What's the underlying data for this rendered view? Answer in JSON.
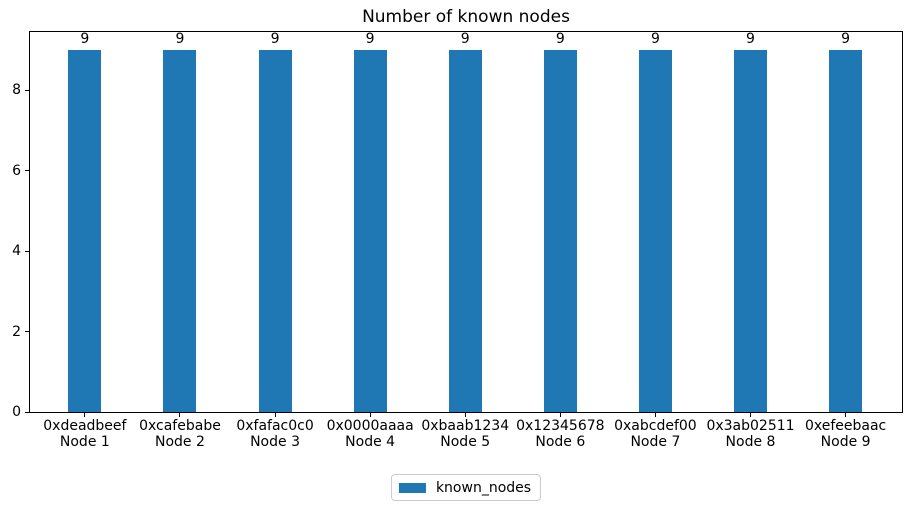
{
  "chart_data": {
    "type": "bar",
    "title": "Number of known nodes",
    "xlabel": "",
    "ylabel": "",
    "categories": [
      {
        "address": "0xdeadbeef",
        "name": "Node 1"
      },
      {
        "address": "0xcafebabe",
        "name": "Node 2"
      },
      {
        "address": "0xfafac0c0",
        "name": "Node 3"
      },
      {
        "address": "0x0000aaaa",
        "name": "Node 4"
      },
      {
        "address": "0xbaab1234",
        "name": "Node 5"
      },
      {
        "address": "0x12345678",
        "name": "Node 6"
      },
      {
        "address": "0xabcdef00",
        "name": "Node 7"
      },
      {
        "address": "0x3ab02511",
        "name": "Node 8"
      },
      {
        "address": "0xefeebaac",
        "name": "Node 9"
      }
    ],
    "series": [
      {
        "name": "known_nodes",
        "values": [
          9,
          9,
          9,
          9,
          9,
          9,
          9,
          9,
          9
        ],
        "color": "#1f77b4"
      }
    ],
    "bar_value_labels": [
      "9",
      "9",
      "9",
      "9",
      "9",
      "9",
      "9",
      "9",
      "9"
    ],
    "yticks": [
      0,
      2,
      4,
      6,
      8
    ],
    "ylim": [
      0,
      9.45
    ],
    "grid": false,
    "legend": {
      "position": "bottom-center",
      "entries": [
        {
          "label": "known_nodes",
          "color": "#1f77b4"
        }
      ]
    },
    "colors": {
      "bar": "#1f77b4",
      "spine": "#000000",
      "text": "#000000",
      "legend_border": "#cccccc",
      "background": "#ffffff"
    }
  }
}
